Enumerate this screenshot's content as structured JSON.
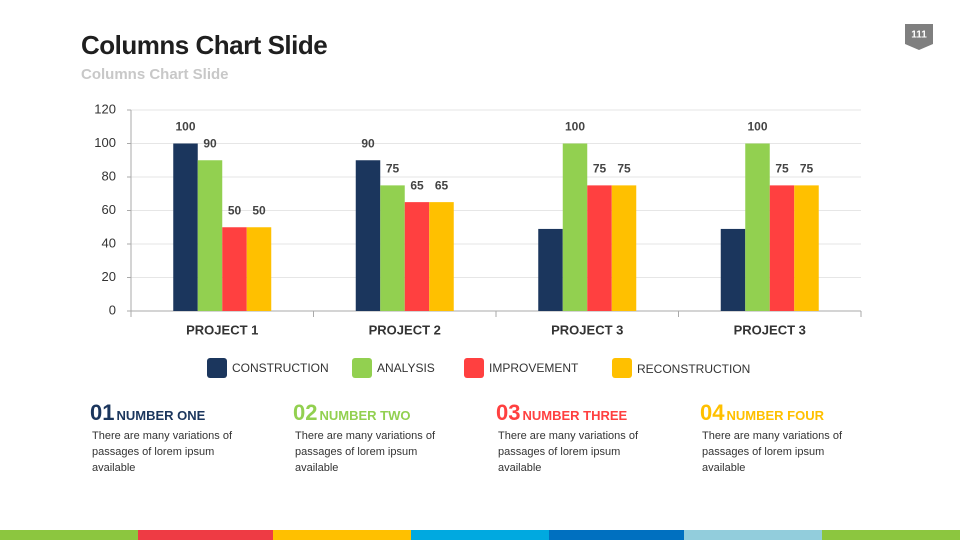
{
  "page_number": "111",
  "chart_data": {
    "type": "bar",
    "title": "Columns Chart Slide",
    "subtitle": "Columns Chart Slide",
    "categories": [
      "PROJECT 1",
      "PROJECT 2",
      "PROJECT 3",
      "PROJECT 3"
    ],
    "series": [
      {
        "name": "CONSTRUCTION",
        "color": "#1b365d",
        "values": [
          100,
          90,
          49,
          49
        ],
        "value_labels": [
          "100",
          "90",
          null,
          null
        ]
      },
      {
        "name": "ANALYSIS",
        "color": "#92d050",
        "values": [
          90,
          75,
          100,
          100
        ]
      },
      {
        "name": "IMPROVEMENT",
        "color": "#ff4040",
        "values": [
          50,
          65,
          75,
          75
        ]
      },
      {
        "name": "RECONSTRUCTION",
        "color": "#ffc000",
        "values": [
          50,
          65,
          75,
          75
        ]
      }
    ],
    "ylim": [
      0,
      120
    ],
    "yticks": [
      0,
      20,
      40,
      60,
      80,
      100,
      120
    ],
    "grid": true,
    "legend": "bottom"
  },
  "info": [
    {
      "number": "01",
      "heading": "NUMBER ONE",
      "color": "#1b365d",
      "text": "There are many variations of passages of lorem ipsum available"
    },
    {
      "number": "02",
      "heading": "NUMBER TWO",
      "color": "#92d050",
      "text": "There are many variations of passages of lorem ipsum available"
    },
    {
      "number": "03",
      "heading": "NUMBER THREE",
      "color": "#ff4040",
      "text": "There are many variations of passages of lorem ipsum available"
    },
    {
      "number": "04",
      "heading": "NUMBER FOUR",
      "color": "#ffc000",
      "text": "There are many variations of passages of lorem ipsum available"
    }
  ]
}
